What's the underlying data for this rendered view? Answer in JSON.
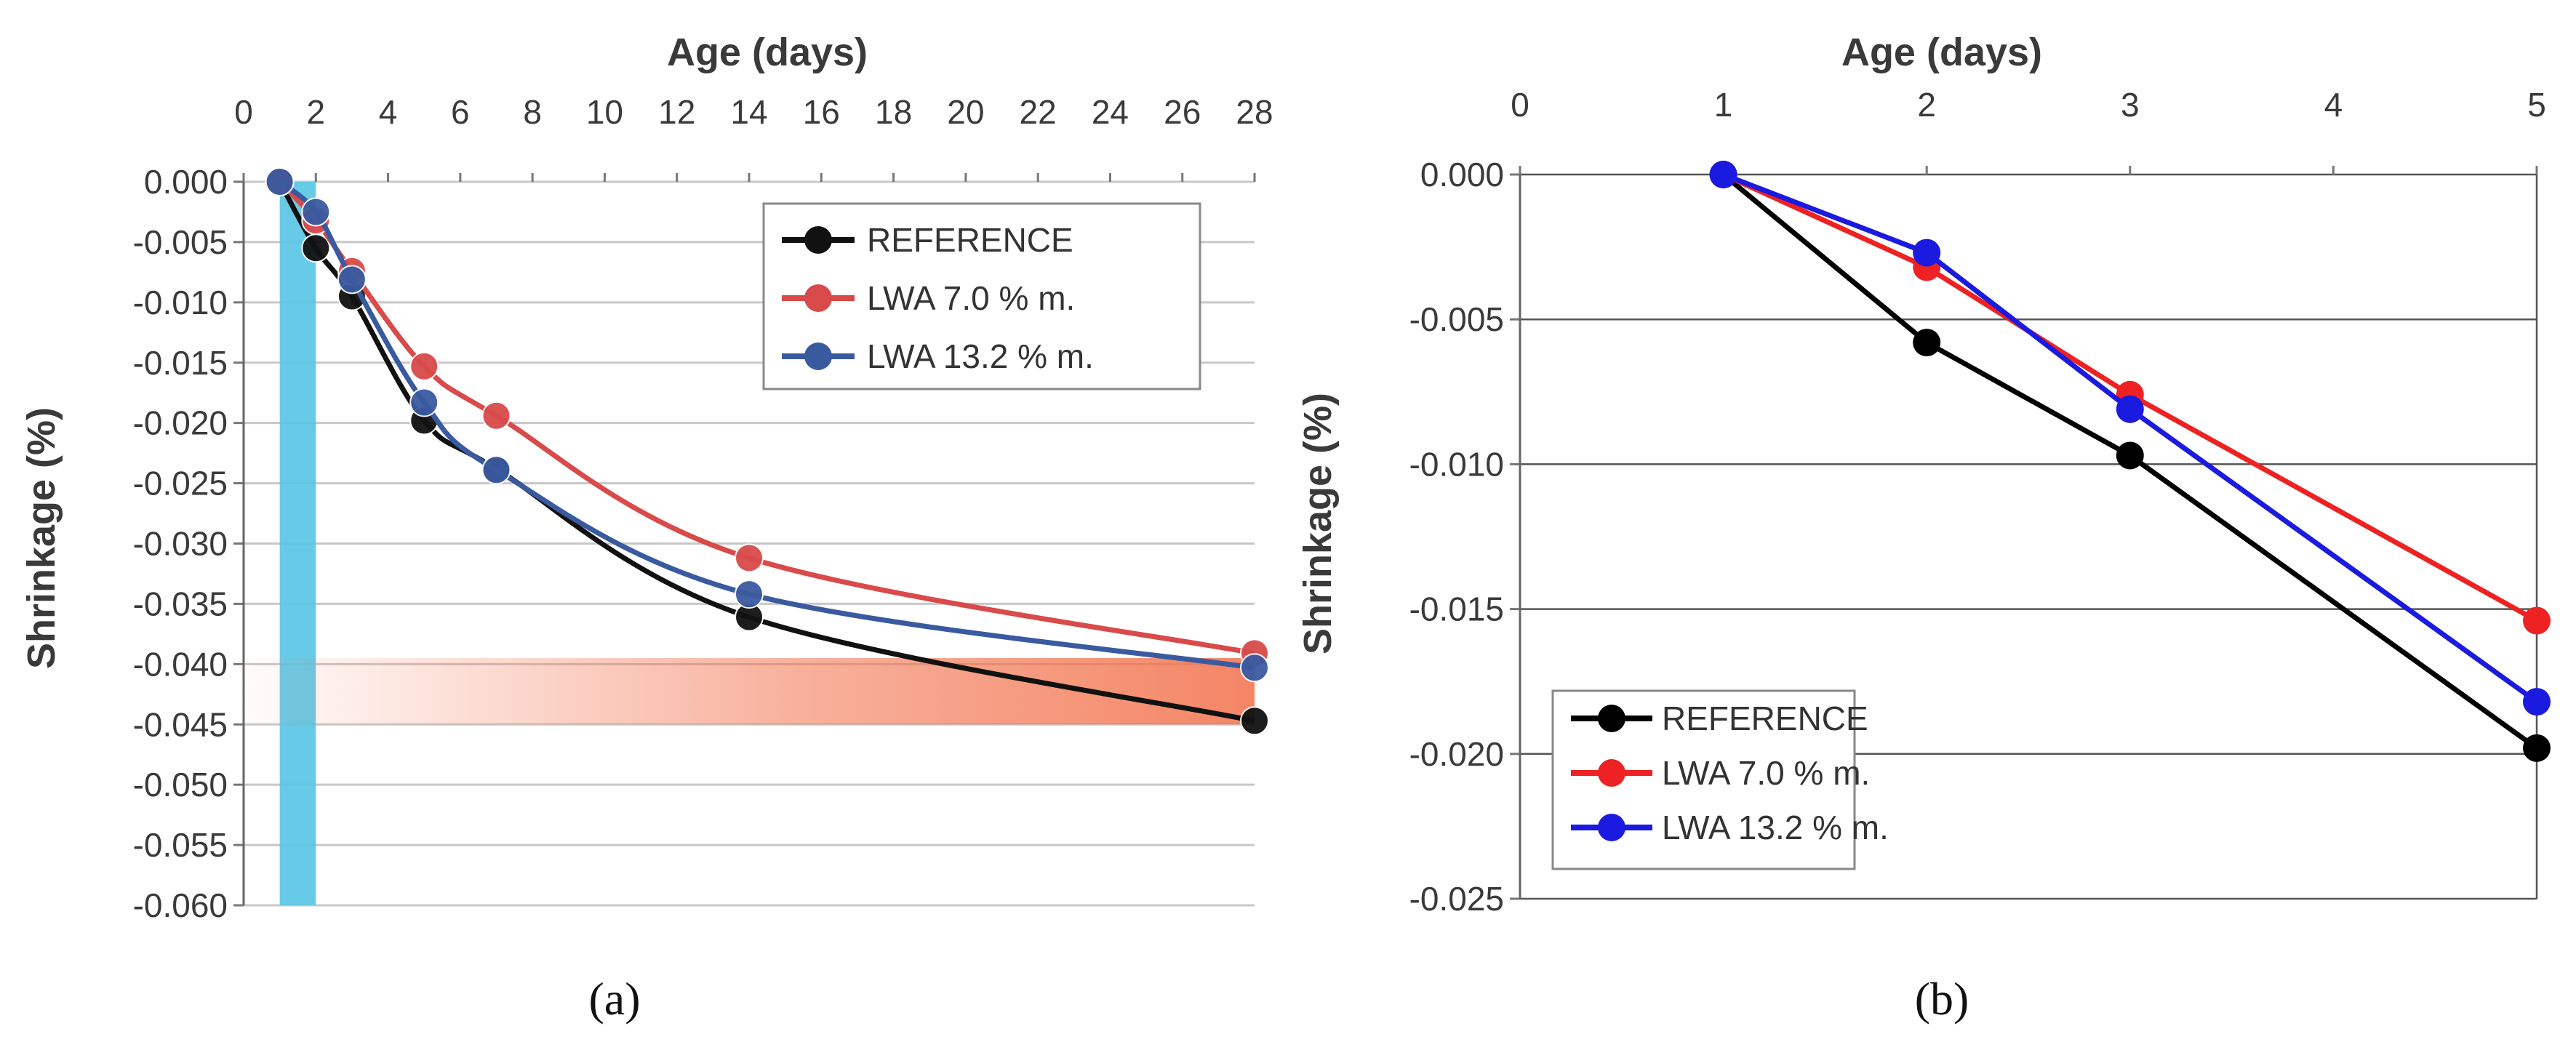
{
  "panels": [
    {
      "caption": "(a)",
      "legend": [
        "REFERENCE",
        "LWA 7.0 % m.",
        "LWA 13.2 % m."
      ]
    },
    {
      "caption": "(b)",
      "legend": [
        "REFERENCE",
        "LWA 7.0 % m.",
        "LWA 13.2 % m."
      ]
    }
  ],
  "chart_data": [
    {
      "type": "line",
      "panel": "a",
      "title": "",
      "xlabel": "Age (days)",
      "ylabel": "Shrinkage (%)",
      "xlim": [
        0,
        28
      ],
      "ylim": [
        -0.06,
        0.0
      ],
      "xticks": [
        "0",
        "2",
        "4",
        "6",
        "8",
        "10",
        "12",
        "14",
        "16",
        "18",
        "20",
        "22",
        "24",
        "26",
        "28"
      ],
      "yticks": [
        "0.000",
        "-0.005",
        "-0.010",
        "-0.015",
        "-0.020",
        "-0.025",
        "-0.030",
        "-0.035",
        "-0.040",
        "-0.045",
        "-0.050",
        "-0.055",
        "-0.060"
      ],
      "xaxis_position": "top",
      "grid": true,
      "legend_position": "top-right",
      "highlights": [
        {
          "kind": "vertical-band",
          "x_range": [
            1,
            2
          ],
          "color": "#56c5e6"
        },
        {
          "kind": "horizontal-band",
          "y_range": [
            -0.045,
            -0.0395
          ],
          "color": "#f2704a"
        }
      ],
      "series": [
        {
          "name": "REFERENCE",
          "color": "#111111",
          "x": [
            1,
            2,
            3,
            5,
            7,
            14,
            28
          ],
          "y": [
            0.0,
            -0.0055,
            -0.0095,
            -0.0198,
            -0.0238,
            -0.0361,
            -0.0447
          ]
        },
        {
          "name": "LWA 7.0 % m.",
          "color": "#d94a4a",
          "x": [
            1,
            2,
            3,
            5,
            7,
            14,
            28
          ],
          "y": [
            0.0,
            -0.0032,
            -0.0074,
            -0.0153,
            -0.0194,
            -0.0312,
            -0.0391
          ]
        },
        {
          "name": "LWA 13.2 % m.",
          "color": "#3a5aa0",
          "x": [
            1,
            2,
            3,
            5,
            7,
            14,
            28
          ],
          "y": [
            0.0,
            -0.0025,
            -0.0081,
            -0.0183,
            -0.0239,
            -0.0342,
            -0.0403
          ]
        }
      ]
    },
    {
      "type": "line",
      "panel": "b",
      "title": "",
      "xlabel": "Age (days)",
      "ylabel": "Shrinkage (%)",
      "xlim": [
        0,
        5
      ],
      "ylim": [
        -0.025,
        0.0
      ],
      "xticks": [
        "0",
        "1",
        "2",
        "3",
        "4",
        "5"
      ],
      "yticks": [
        "0.000",
        "-0.005",
        "-0.010",
        "-0.015",
        "-0.020",
        "-0.025"
      ],
      "xaxis_position": "top",
      "grid": true,
      "legend_position": "bottom-left",
      "series": [
        {
          "name": "REFERENCE",
          "color": "#000000",
          "x": [
            1,
            2,
            3,
            5
          ],
          "y": [
            0.0,
            -0.0058,
            -0.0097,
            -0.0198
          ]
        },
        {
          "name": "LWA 7.0 % m.",
          "color": "#ee2222",
          "x": [
            1,
            2,
            3,
            5
          ],
          "y": [
            0.0,
            -0.0032,
            -0.0076,
            -0.0154
          ]
        },
        {
          "name": "LWA 13.2 % m.",
          "color": "#1a1ae0",
          "x": [
            1,
            2,
            3,
            5
          ],
          "y": [
            0.0,
            -0.0027,
            -0.0081,
            -0.0182
          ]
        }
      ]
    }
  ]
}
